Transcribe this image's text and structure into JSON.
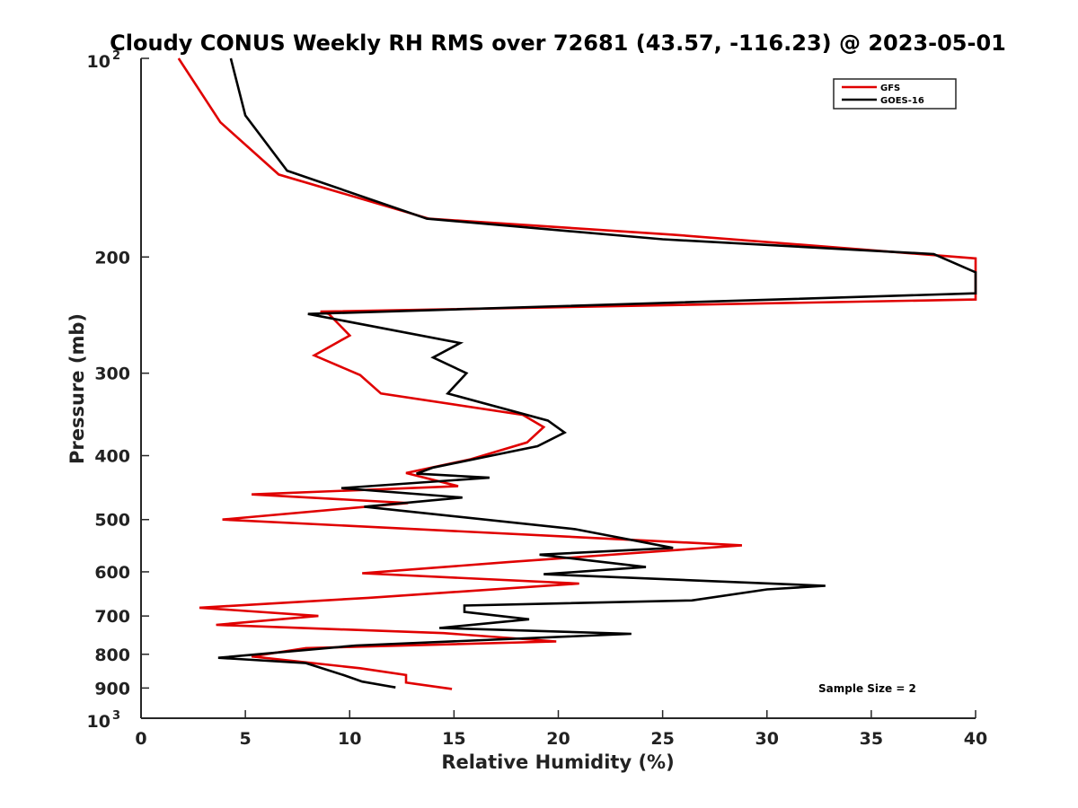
{
  "chart_data": {
    "type": "line",
    "title": "Cloudy CONUS Weekly RH RMS over 72681 (43.57, -116.23) @ 2023-05-01",
    "xlabel": "Relative Humidity (%)",
    "ylabel": "Pressure (mb)",
    "xlim": [
      0,
      40
    ],
    "ylim": [
      1000,
      100
    ],
    "y_scale": "log",
    "y_reversed": true,
    "grid": false,
    "legend_position": "top-right",
    "x_ticks": [
      "0",
      "5",
      "10",
      "15",
      "20",
      "25",
      "30",
      "35",
      "40"
    ],
    "y_ticks": [
      {
        "value": 100,
        "base": "10",
        "exp": "2"
      },
      {
        "value": 200,
        "label": "200"
      },
      {
        "value": 300,
        "label": "300"
      },
      {
        "value": 400,
        "label": "400"
      },
      {
        "value": 500,
        "label": "500"
      },
      {
        "value": 600,
        "label": "600"
      },
      {
        "value": 700,
        "label": "700"
      },
      {
        "value": 800,
        "label": "800"
      },
      {
        "value": 900,
        "label": "900"
      },
      {
        "value": 1000,
        "base": "10",
        "exp": "3"
      }
    ],
    "series": [
      {
        "name": "GFS",
        "color": "#e00000",
        "points": [
          [
            1.8,
            100
          ],
          [
            3.8,
            125
          ],
          [
            6.6,
            150
          ],
          [
            13.8,
            175
          ],
          [
            25.5,
            185
          ],
          [
            40,
            201
          ],
          [
            40,
            232
          ],
          [
            8.6,
            242
          ],
          [
            9.0,
            244
          ],
          [
            10.0,
            263
          ],
          [
            8.3,
            282
          ],
          [
            10.5,
            302
          ],
          [
            11.5,
            322
          ],
          [
            18.3,
            347
          ],
          [
            19.3,
            362
          ],
          [
            18.5,
            382
          ],
          [
            15.8,
            405
          ],
          [
            12.7,
            425
          ],
          [
            15.2,
            445
          ],
          [
            5.3,
            458
          ],
          [
            12.8,
            472
          ],
          [
            3.9,
            500
          ],
          [
            28.8,
            547
          ],
          [
            17.6,
            580
          ],
          [
            10.6,
            603
          ],
          [
            21.0,
            625
          ],
          [
            10.9,
            657
          ],
          [
            2.8,
            680
          ],
          [
            8.5,
            700
          ],
          [
            3.6,
            722
          ],
          [
            14.5,
            743
          ],
          [
            19.9,
            765
          ],
          [
            7.9,
            783
          ],
          [
            5.3,
            806
          ],
          [
            10.5,
            840
          ],
          [
            12.7,
            860
          ],
          [
            12.7,
            883
          ],
          [
            14.9,
            903
          ]
        ]
      },
      {
        "name": "GOES-16",
        "color": "#000000",
        "points": [
          [
            4.3,
            100
          ],
          [
            5.0,
            122
          ],
          [
            7.0,
            148
          ],
          [
            13.7,
            175
          ],
          [
            25.0,
            188
          ],
          [
            38.0,
            198
          ],
          [
            40,
            211
          ],
          [
            40,
            227
          ],
          [
            8.0,
            244
          ],
          [
            15.3,
            270
          ],
          [
            14.0,
            284
          ],
          [
            15.6,
            300
          ],
          [
            14.7,
            322
          ],
          [
            19.5,
            354
          ],
          [
            20.3,
            369
          ],
          [
            19.0,
            387
          ],
          [
            14.0,
            417
          ],
          [
            13.2,
            426
          ],
          [
            16.7,
            432
          ],
          [
            9.6,
            448
          ],
          [
            15.4,
            463
          ],
          [
            10.7,
            478
          ],
          [
            20.8,
            517
          ],
          [
            25.5,
            552
          ],
          [
            19.1,
            565
          ],
          [
            24.2,
            590
          ],
          [
            19.3,
            605
          ],
          [
            32.8,
            630
          ],
          [
            30.0,
            638
          ],
          [
            26.4,
            663
          ],
          [
            15.5,
            675
          ],
          [
            15.5,
            690
          ],
          [
            18.6,
            708
          ],
          [
            14.3,
            730
          ],
          [
            23.5,
            745
          ],
          [
            10.3,
            776
          ],
          [
            3.7,
            810
          ],
          [
            7.9,
            825
          ],
          [
            9.7,
            860
          ],
          [
            10.6,
            880
          ],
          [
            12.2,
            898
          ]
        ]
      }
    ],
    "annotations": [
      "Sample Size = 2"
    ]
  }
}
